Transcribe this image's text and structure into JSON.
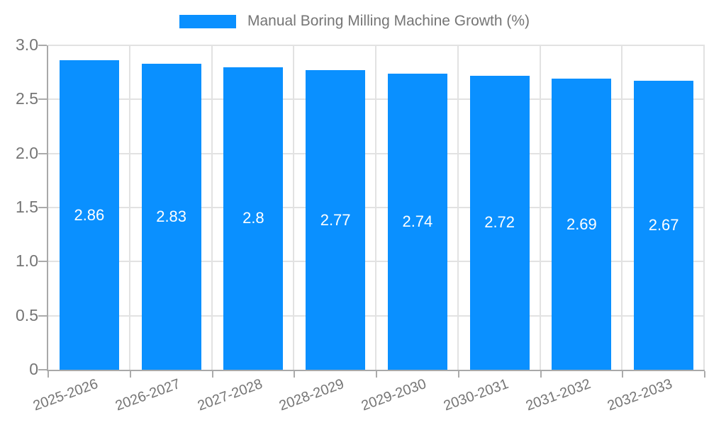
{
  "chart_data": {
    "type": "bar",
    "title": "Manual Boring Milling Machine Growth (%)",
    "legend_label": "Manual Boring Milling Machine Growth (%)",
    "legend_position": "top",
    "categories": [
      "2025-2026",
      "2026-2027",
      "2027-2028",
      "2028-2029",
      "2029-2030",
      "2030-2031",
      "2031-2032",
      "2032-2033"
    ],
    "values": [
      2.86,
      2.83,
      2.8,
      2.77,
      2.74,
      2.72,
      2.69,
      2.67
    ],
    "value_labels": [
      "2.86",
      "2.83",
      "2.8",
      "2.77",
      "2.74",
      "2.72",
      "2.69",
      "2.67"
    ],
    "xlabel": "",
    "ylabel": "",
    "ylim": [
      0,
      3.0
    ],
    "yticks": [
      0,
      0.5,
      1.0,
      1.5,
      2.0,
      2.5,
      3.0
    ],
    "ytick_labels": [
      "0",
      "0.5",
      "1.0",
      "1.5",
      "2.0",
      "2.5",
      "3.0"
    ],
    "grid": true,
    "colors": {
      "bar": "#0A90FF",
      "grid": "#e2e2e2",
      "axis": "#a9a9a9",
      "text": "#757575",
      "value_label": "#ffffff",
      "background": "#ffffff"
    }
  }
}
